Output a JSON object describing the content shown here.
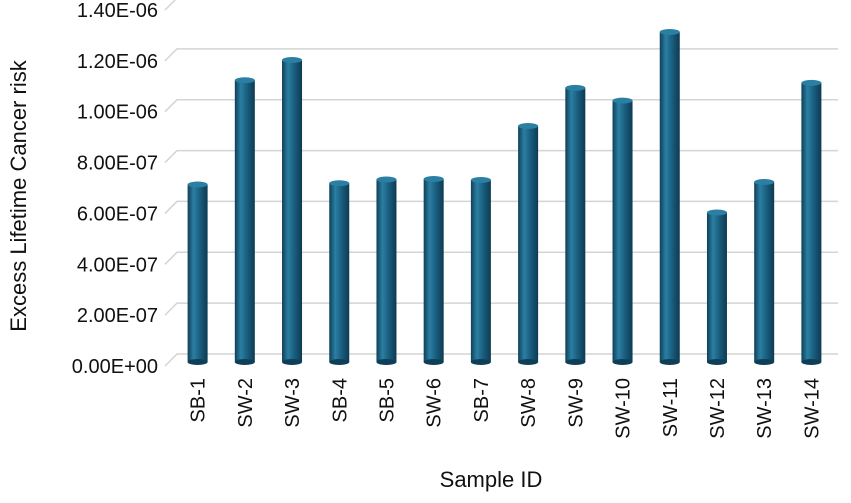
{
  "chart_data": {
    "type": "bar",
    "style": "3d-cylinder",
    "categories": [
      "SB-1",
      "SW-2",
      "SW-3",
      "SB-4",
      "SB-5",
      "SW-6",
      "SB-7",
      "SW-8",
      "SW-9",
      "SW-10",
      "SW-11",
      "SW-12",
      "SW-13",
      "SW-14"
    ],
    "values": [
      6.9e-07,
      1.1e-06,
      1.18e-06,
      6.95e-07,
      7.1e-07,
      7.12e-07,
      7.08e-07,
      9.2e-07,
      1.07e-06,
      1.02e-06,
      1.29e-06,
      5.8e-07,
      7e-07,
      1.09e-06
    ],
    "xlabel": "Sample ID",
    "ylabel": "Excess Lifetime Cancer risk",
    "ylim": [
      0,
      1.4e-06
    ],
    "yticks": [
      "0.00E+00",
      "2.00E-07",
      "4.00E-07",
      "6.00E-07",
      "8.00E-07",
      "1.00E-06",
      "1.20E-06",
      "1.40E-06"
    ],
    "grid": true,
    "bar_color": "#1a5f80",
    "bar_highlight": "#2a7fa3",
    "bar_shadow": "#0f3f58"
  }
}
